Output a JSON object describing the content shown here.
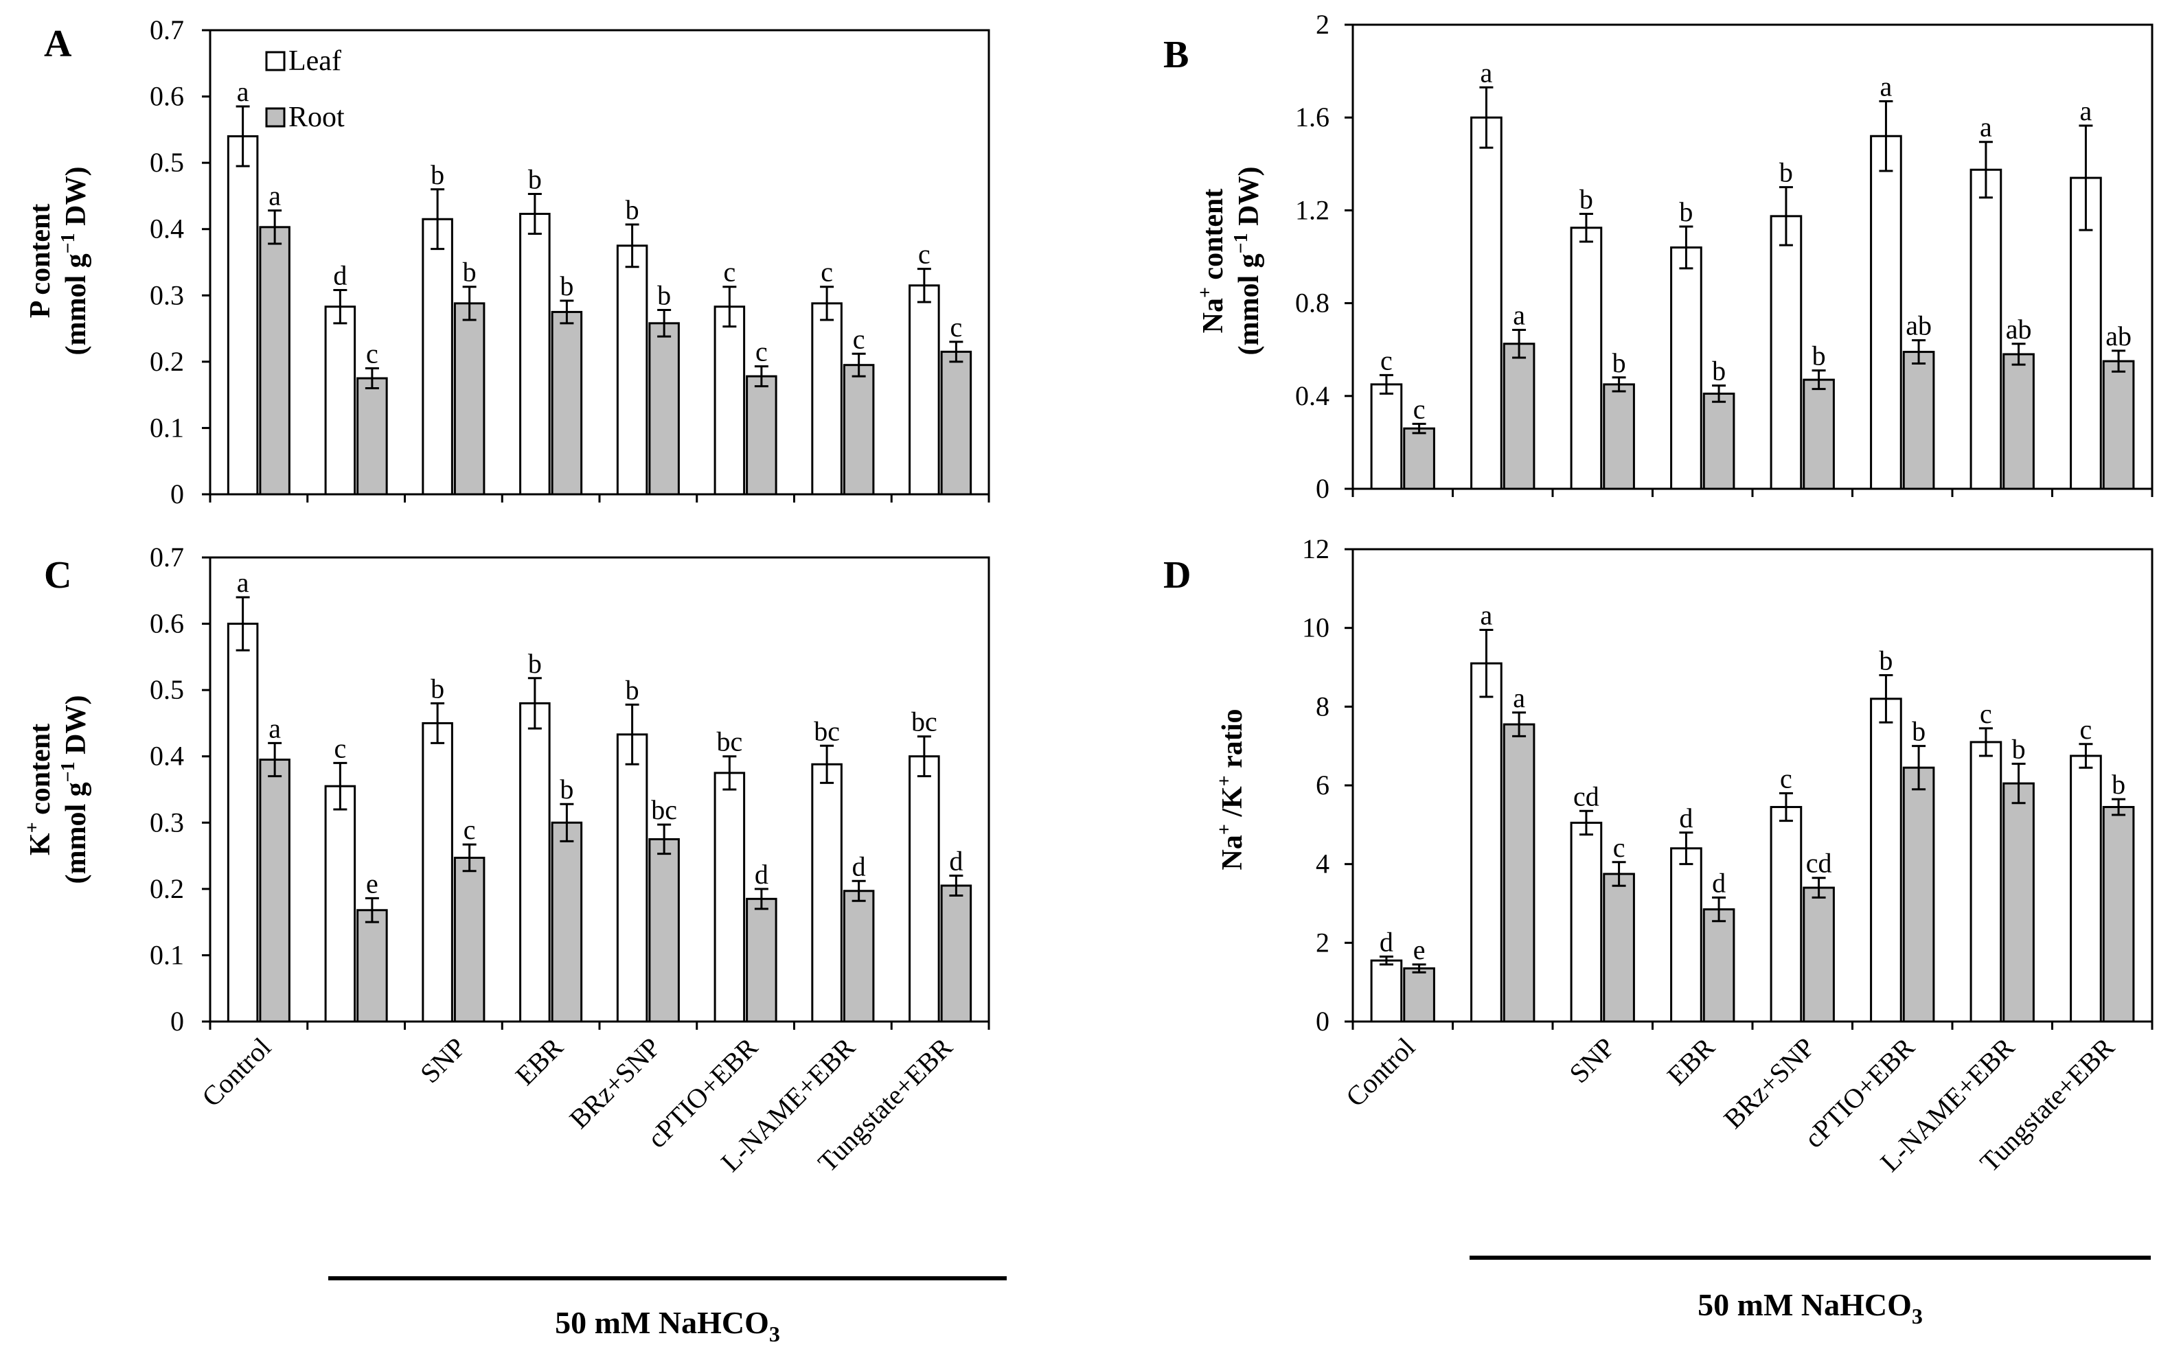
{
  "colors": {
    "leaf": "#ffffff",
    "root": "#bfbfbf",
    "axis": "#000000"
  },
  "treatment_label": {
    "text": "50 mM NaHCO",
    "sub": "3"
  },
  "chart_data": [
    {
      "id": "A",
      "type": "bar",
      "panel": "A",
      "ylabel_line1": "P content",
      "ylabel_line2": "(mmol  g",
      "ylabel_sup": "−1",
      "ylabel_line2_end": " DW)",
      "ylim": [
        0,
        0.7
      ],
      "yticks": [
        "0",
        "0.1",
        "0.2",
        "0.3",
        "0.4",
        "0.5",
        "0.6",
        "0.7"
      ],
      "categories": [
        "Control",
        "",
        "SNP",
        "EBR",
        "BRz+SNP",
        "cPTIO+EBR",
        "L-NAME+EBR",
        "Tungstate+EBR"
      ],
      "legend": [
        "Leaf",
        "Root"
      ],
      "series": [
        {
          "name": "Leaf",
          "values": [
            0.54,
            0.283,
            0.415,
            0.423,
            0.375,
            0.283,
            0.288,
            0.315
          ],
          "errors": [
            0.045,
            0.025,
            0.045,
            0.03,
            0.032,
            0.03,
            0.025,
            0.025
          ],
          "letters": [
            "a",
            "d",
            "b",
            "b",
            "b",
            "c",
            "c",
            "c"
          ]
        },
        {
          "name": "Root",
          "values": [
            0.403,
            0.175,
            0.288,
            0.275,
            0.258,
            0.178,
            0.195,
            0.215
          ],
          "errors": [
            0.025,
            0.015,
            0.025,
            0.017,
            0.02,
            0.015,
            0.017,
            0.015
          ],
          "letters": [
            "a",
            "c",
            "b",
            "b",
            "b",
            "c",
            "c",
            "c"
          ]
        }
      ]
    },
    {
      "id": "B",
      "type": "bar",
      "panel": "B",
      "ylabel_line1": "Na",
      "ylabel_line1_sup": "+",
      "ylabel_line1_end": " content",
      "ylabel_line2": "(mmol  g",
      "ylabel_sup": "−1",
      "ylabel_line2_end": " DW)",
      "ylim": [
        0,
        2
      ],
      "yticks": [
        "0",
        "0.4",
        "0.8",
        "1.2",
        "1.6",
        "2"
      ],
      "categories": [
        "Control",
        "",
        "SNP",
        "EBR",
        "BRz+SNP",
        "cPTIO+EBR",
        "L-NAME+EBR",
        "Tungstate+EBR"
      ],
      "series": [
        {
          "name": "Leaf",
          "values": [
            0.45,
            1.6,
            1.125,
            1.04,
            1.175,
            1.52,
            1.375,
            1.34
          ],
          "errors": [
            0.04,
            0.13,
            0.06,
            0.09,
            0.125,
            0.15,
            0.12,
            0.225
          ],
          "letters": [
            "c",
            "a",
            "b",
            "b",
            "b",
            "a",
            "a",
            "a"
          ]
        },
        {
          "name": "Root",
          "values": [
            0.26,
            0.625,
            0.45,
            0.41,
            0.47,
            0.59,
            0.58,
            0.55
          ],
          "errors": [
            0.02,
            0.06,
            0.03,
            0.035,
            0.04,
            0.05,
            0.045,
            0.045
          ],
          "letters": [
            "c",
            "a",
            "b",
            "b",
            "b",
            "ab",
            "ab",
            "ab"
          ]
        }
      ]
    },
    {
      "id": "C",
      "type": "bar",
      "panel": "C",
      "ylabel_line1": "K",
      "ylabel_line1_sup": "+",
      "ylabel_line1_end": " content",
      "ylabel_line2": "(mmol  g",
      "ylabel_sup": "−1",
      "ylabel_line2_end": " DW)",
      "ylim": [
        0,
        0.7
      ],
      "yticks": [
        "0",
        "0.1",
        "0.2",
        "0.3",
        "0.4",
        "0.5",
        "0.6",
        "0.7"
      ],
      "categories": [
        "Control",
        "",
        "SNP",
        "EBR",
        "BRz+SNP",
        "cPTIO+EBR",
        "L-NAME+EBR",
        "Tungstate+EBR"
      ],
      "series": [
        {
          "name": "Leaf",
          "values": [
            0.6,
            0.355,
            0.45,
            0.48,
            0.433,
            0.375,
            0.388,
            0.4
          ],
          "errors": [
            0.04,
            0.035,
            0.03,
            0.038,
            0.045,
            0.025,
            0.028,
            0.03
          ],
          "letters": [
            "a",
            "c",
            "b",
            "b",
            "b",
            "bc",
            "bc",
            "bc"
          ]
        },
        {
          "name": "Root",
          "values": [
            0.395,
            0.168,
            0.247,
            0.3,
            0.275,
            0.185,
            0.197,
            0.205
          ],
          "errors": [
            0.025,
            0.018,
            0.02,
            0.028,
            0.022,
            0.015,
            0.015,
            0.015
          ],
          "letters": [
            "a",
            "e",
            "c",
            "b",
            "bc",
            "d",
            "d",
            "d"
          ]
        }
      ]
    },
    {
      "id": "D",
      "type": "bar",
      "panel": "D",
      "ylabel_line1": "Na",
      "ylabel_line1_sup": "+",
      "ylabel_line1_mid": " /K",
      "ylabel_line1_sup2": "+",
      "ylabel_line1_end": " ratio",
      "ylim": [
        0,
        12
      ],
      "yticks": [
        "0",
        "2",
        "4",
        "6",
        "8",
        "10",
        "12"
      ],
      "categories": [
        "Control",
        "",
        "SNP",
        "EBR",
        "BRz+SNP",
        "cPTIO+EBR",
        "L-NAME+EBR",
        "Tungstate+EBR"
      ],
      "series": [
        {
          "name": "Leaf",
          "values": [
            1.55,
            9.1,
            5.05,
            4.4,
            5.45,
            8.2,
            7.1,
            6.75
          ],
          "errors": [
            0.1,
            0.85,
            0.3,
            0.4,
            0.35,
            0.6,
            0.35,
            0.3
          ],
          "letters": [
            "d",
            "a",
            "cd",
            "d",
            "c",
            "b",
            "c",
            "c"
          ]
        },
        {
          "name": "Root",
          "values": [
            1.35,
            7.55,
            3.75,
            2.85,
            3.4,
            6.45,
            6.05,
            5.45
          ],
          "errors": [
            0.1,
            0.3,
            0.3,
            0.3,
            0.25,
            0.55,
            0.5,
            0.2
          ],
          "letters": [
            "e",
            "a",
            "c",
            "d",
            "cd",
            "b",
            "b",
            "b"
          ]
        }
      ]
    }
  ]
}
